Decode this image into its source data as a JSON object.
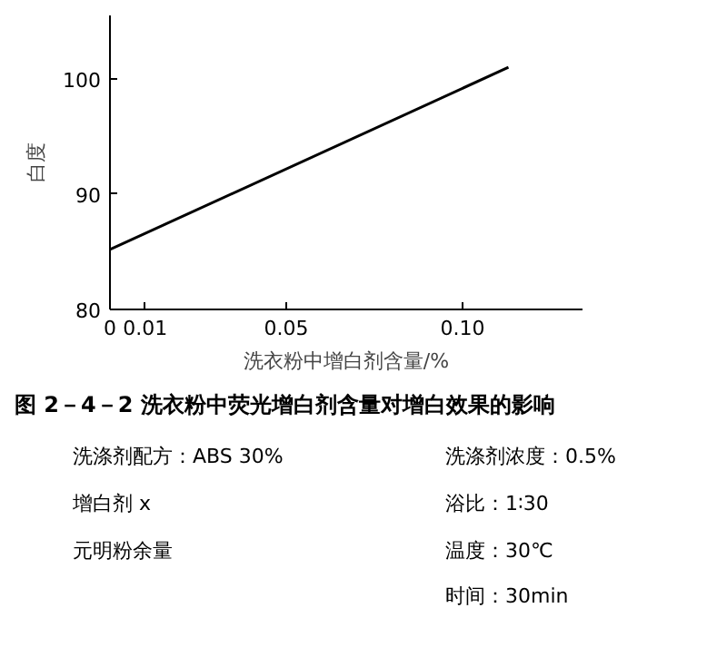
{
  "chart_data": {
    "type": "line",
    "title": "图 2－4－2  洗衣粉中荧光增白剂含量对增白效果的影响",
    "xlabel": "洗衣粉中增白剂含量/%",
    "ylabel": "白度",
    "x": [
      0,
      0.113
    ],
    "series": [
      {
        "color": "#000000",
        "values": [
          85.2,
          101
        ]
      }
    ],
    "xlim": [
      0,
      0.134
    ],
    "ylim": [
      80,
      105.5
    ],
    "xticks": [
      0,
      0.01,
      0.05,
      {
        "value": 0.1,
        "label": "0.10"
      }
    ],
    "yticks": [
      80,
      90,
      100
    ],
    "grid": false,
    "marker": "none",
    "line_style": "solid",
    "annotations": [
      "洗涤剂配方：ABS 30%",
      "增白剂 x",
      "元明粉余量",
      "洗涤剂浓度：0.5%",
      "浴比：1∶30",
      "温度：30℃",
      "时间：30min"
    ]
  }
}
